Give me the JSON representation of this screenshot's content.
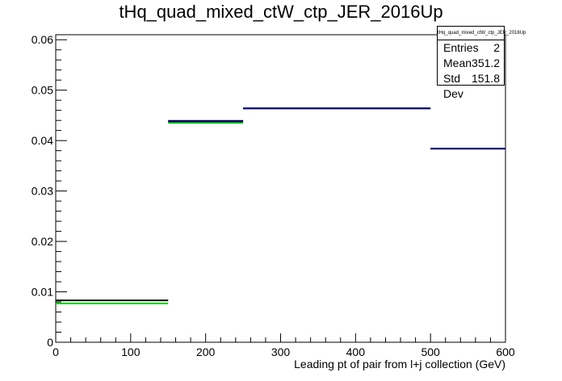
{
  "chart_data": {
    "type": "histogram",
    "title": "tHq_quad_mixed_ctW_ctp_JER_2016Up",
    "xlabel": "Leading pt of pair from l+j collection (GeV)",
    "ylabel": "",
    "xlim": [
      0,
      600
    ],
    "ylim": [
      0,
      0.061
    ],
    "x_ticks": [
      "0",
      "100",
      "200",
      "300",
      "400",
      "500",
      "600"
    ],
    "y_ticks": [
      "0",
      "0.01",
      "0.02",
      "0.03",
      "0.04",
      "0.05",
      "0.06"
    ],
    "grid": false,
    "series": [
      {
        "color": "#000000",
        "bins": [
          {
            "xlow": 0,
            "xhigh": 150,
            "value": 0.0083
          },
          {
            "xlow": 150,
            "xhigh": 250,
            "value": 0.0439
          },
          {
            "xlow": 250,
            "xhigh": 500,
            "value": 0.0464
          },
          {
            "xlow": 500,
            "xhigh": 600,
            "value": 0.0384
          }
        ]
      },
      {
        "color": "#00cc00",
        "bins": [
          {
            "xlow": 0,
            "xhigh": 150,
            "value": 0.0077
          },
          {
            "xlow": 150,
            "xhigh": 250,
            "value": 0.0435
          }
        ]
      },
      {
        "color": "#000080",
        "bins": [
          {
            "xlow": 150,
            "xhigh": 250,
            "value": 0.0438
          },
          {
            "xlow": 250,
            "xhigh": 500,
            "value": 0.0464
          },
          {
            "xlow": 500,
            "xhigh": 600,
            "value": 0.0384
          }
        ]
      }
    ],
    "stats_box": {
      "name": "tHq_quad_mixed_ctW_ctp_JER_2016Up",
      "rows": [
        {
          "label": "Entries",
          "value": "2"
        },
        {
          "label": "Mean",
          "value": "351.2"
        },
        {
          "label": "Std Dev",
          "value": "151.8"
        }
      ]
    }
  }
}
